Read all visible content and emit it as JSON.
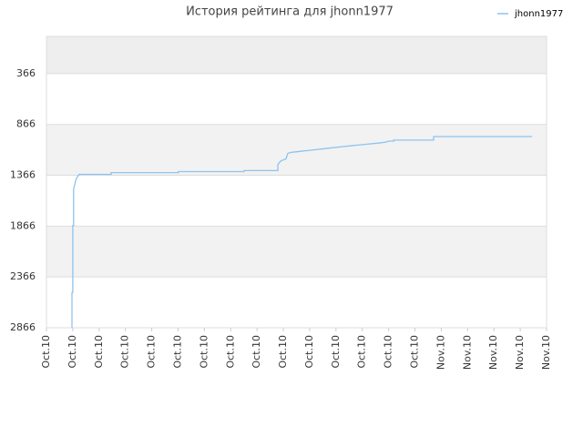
{
  "chart_data": {
    "type": "line",
    "title": "История рейтинга для jhonn1977",
    "series": [
      {
        "name": "jhonn1977",
        "color": "#8ec3ee",
        "x": [
          0.97,
          0.97,
          1.0,
          1.0,
          1.03,
          1.03,
          1.13,
          1.24,
          2.46,
          2.46,
          5.01,
          5.01,
          7.51,
          7.51,
          8.79,
          8.79,
          8.9,
          9.1,
          9.17,
          9.31,
          9.66,
          10.0,
          10.7,
          11.4,
          12.0,
          12.6,
          12.9,
          13.0,
          13.19,
          13.19,
          14.71,
          14.71,
          18.45
        ],
        "values": [
          2866,
          2520,
          2520,
          1860,
          1860,
          1500,
          1400,
          1357,
          1357,
          1340,
          1340,
          1330,
          1330,
          1320,
          1320,
          1260,
          1225,
          1205,
          1150,
          1140,
          1130,
          1120,
          1100,
          1080,
          1065,
          1050,
          1040,
          1030,
          1030,
          1020,
          1020,
          985,
          985
        ]
      }
    ],
    "ylim": [
      2866,
      0
    ],
    "yticks": [
      366,
      866,
      1366,
      1866,
      2366,
      2866
    ],
    "xlim": [
      0,
      19
    ],
    "xticks": [
      {
        "value": 0,
        "label": "Oct.10"
      },
      {
        "value": 1,
        "label": "Oct.10"
      },
      {
        "value": 2,
        "label": "Oct.10"
      },
      {
        "value": 3,
        "label": "Oct.10"
      },
      {
        "value": 4,
        "label": "Oct.10"
      },
      {
        "value": 5,
        "label": "Oct.10"
      },
      {
        "value": 6,
        "label": "Oct.10"
      },
      {
        "value": 7,
        "label": "Oct.10"
      },
      {
        "value": 8,
        "label": "Oct.10"
      },
      {
        "value": 9,
        "label": "Oct.10"
      },
      {
        "value": 10,
        "label": "Oct.10"
      },
      {
        "value": 11,
        "label": "Oct.10"
      },
      {
        "value": 12,
        "label": "Oct.10"
      },
      {
        "value": 13,
        "label": "Oct.10"
      },
      {
        "value": 14,
        "label": "Oct.10"
      },
      {
        "value": 15,
        "label": "Nov.10"
      },
      {
        "value": 16,
        "label": "Nov.10"
      },
      {
        "value": 17,
        "label": "Nov.10"
      },
      {
        "value": 18,
        "label": "Nov.10"
      },
      {
        "value": 19,
        "label": "Nov.10"
      }
    ],
    "grid": true,
    "legend": "top-right"
  }
}
